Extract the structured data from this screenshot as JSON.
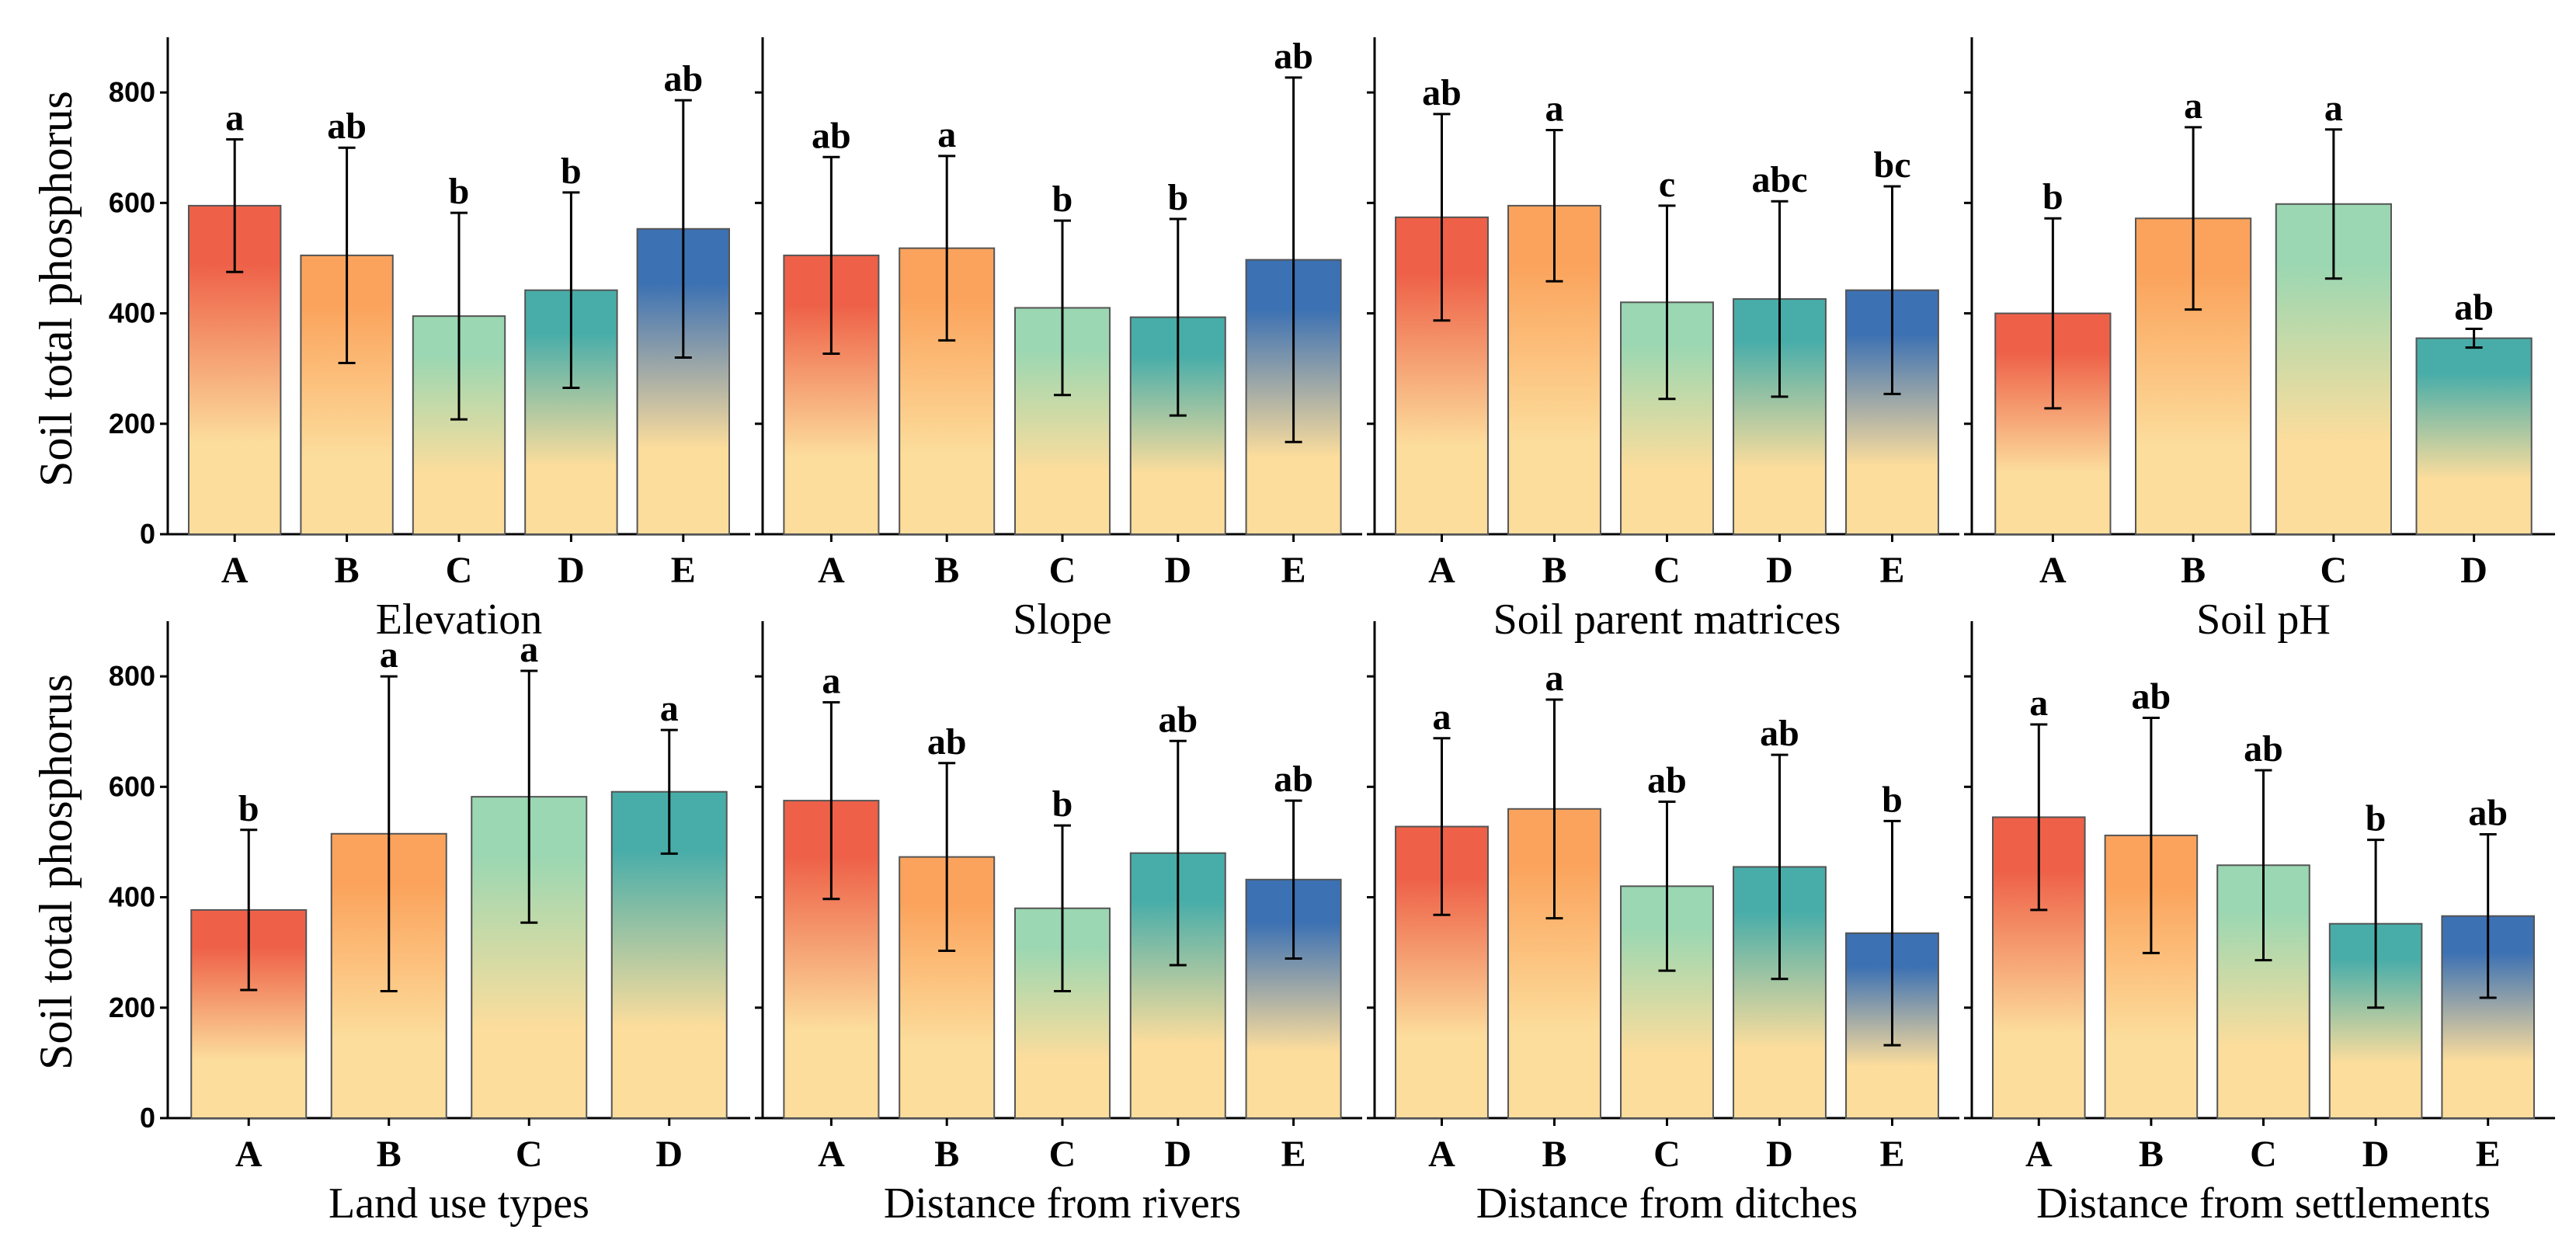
{
  "y_axis_title": "Soil total phosphorus",
  "colors": {
    "top_red": "#ee6148",
    "top_orange": "#fba35c",
    "top_green": "#9ad7b2",
    "top_teal": "#48ada9",
    "top_blue": "#3c71b3",
    "bottom": "#fcdd9c"
  },
  "chart_data": [
    {
      "type": "bar",
      "title": "",
      "xlabel": "Elevation",
      "ylabel": "Soil total phosphorus",
      "ylim": [
        0,
        900
      ],
      "yticks": [
        0,
        200,
        400,
        600,
        800
      ],
      "categories": [
        "A",
        "B",
        "C",
        "D",
        "E"
      ],
      "values": [
        595,
        505,
        395,
        442,
        553
      ],
      "errors": [
        120,
        195,
        187,
        177,
        233
      ],
      "letters": [
        "a",
        "ab",
        "b",
        "b",
        "ab"
      ],
      "bar_colors": [
        "#ee6148",
        "#fba35c",
        "#9ad7b2",
        "#48ada9",
        "#3c71b3"
      ]
    },
    {
      "type": "bar",
      "title": "",
      "xlabel": "Slope",
      "ylabel": "Soil total phosphorus",
      "ylim": [
        0,
        900
      ],
      "yticks": [
        0,
        200,
        400,
        600,
        800
      ],
      "categories": [
        "A",
        "B",
        "C",
        "D",
        "E"
      ],
      "values": [
        505,
        518,
        410,
        393,
        497
      ],
      "errors": [
        178,
        167,
        158,
        178,
        330
      ],
      "letters": [
        "ab",
        "a",
        "b",
        "b",
        "ab"
      ],
      "bar_colors": [
        "#ee6148",
        "#fba35c",
        "#9ad7b2",
        "#48ada9",
        "#3c71b3"
      ]
    },
    {
      "type": "bar",
      "title": "",
      "xlabel": "Soil parent matrices",
      "ylabel": "Soil total phosphorus",
      "ylim": [
        0,
        900
      ],
      "yticks": [
        0,
        200,
        400,
        600,
        800
      ],
      "categories": [
        "A",
        "B",
        "C",
        "D",
        "E"
      ],
      "values": [
        574,
        595,
        420,
        426,
        442
      ],
      "errors": [
        187,
        137,
        175,
        177,
        188
      ],
      "letters": [
        "ab",
        "a",
        "c",
        "abc",
        "bc"
      ],
      "bar_colors": [
        "#ee6148",
        "#fba35c",
        "#9ad7b2",
        "#48ada9",
        "#3c71b3"
      ]
    },
    {
      "type": "bar",
      "title": "",
      "xlabel": "Soil pH",
      "ylabel": "Soil total phosphorus",
      "ylim": [
        0,
        900
      ],
      "yticks": [
        0,
        200,
        400,
        600,
        800
      ],
      "categories": [
        "A",
        "B",
        "C",
        "D"
      ],
      "values": [
        400,
        572,
        598,
        355
      ],
      "errors": [
        172,
        165,
        135,
        17
      ],
      "letters": [
        "b",
        "a",
        "a",
        "ab"
      ],
      "bar_colors": [
        "#ee6148",
        "#fba35c",
        "#9ad7b2",
        "#48ada9"
      ]
    },
    {
      "type": "bar",
      "title": "",
      "xlabel": "Land use types",
      "ylabel": "Soil total phosphorus",
      "ylim": [
        0,
        900
      ],
      "yticks": [
        0,
        200,
        400,
        600,
        800
      ],
      "categories": [
        "A",
        "B",
        "C",
        "D"
      ],
      "values": [
        377,
        515,
        582,
        591
      ],
      "errors": [
        145,
        285,
        228,
        112
      ],
      "letters": [
        "b",
        "a",
        "a",
        "a"
      ],
      "bar_colors": [
        "#ee6148",
        "#fba35c",
        "#9ad7b2",
        "#48ada9"
      ]
    },
    {
      "type": "bar",
      "title": "",
      "xlabel": "Distance from rivers",
      "ylabel": "Soil total phosphorus",
      "ylim": [
        0,
        900
      ],
      "yticks": [
        0,
        200,
        400,
        600,
        800
      ],
      "categories": [
        "A",
        "B",
        "C",
        "D",
        "E"
      ],
      "values": [
        575,
        473,
        380,
        480,
        432
      ],
      "errors": [
        178,
        170,
        150,
        203,
        143
      ],
      "letters": [
        "a",
        "ab",
        "b",
        "ab",
        "ab"
      ],
      "bar_colors": [
        "#ee6148",
        "#fba35c",
        "#9ad7b2",
        "#48ada9",
        "#3c71b3"
      ]
    },
    {
      "type": "bar",
      "title": "",
      "xlabel": "Distance from ditches",
      "ylabel": "Soil total phosphorus",
      "ylim": [
        0,
        900
      ],
      "yticks": [
        0,
        200,
        400,
        600,
        800
      ],
      "categories": [
        "A",
        "B",
        "C",
        "D",
        "E"
      ],
      "values": [
        528,
        560,
        420,
        455,
        335
      ],
      "errors": [
        160,
        198,
        153,
        203,
        203
      ],
      "letters": [
        "a",
        "a",
        "ab",
        "ab",
        "b"
      ],
      "bar_colors": [
        "#ee6148",
        "#fba35c",
        "#9ad7b2",
        "#48ada9",
        "#3c71b3"
      ]
    },
    {
      "type": "bar",
      "title": "",
      "xlabel": "Distance from settlements",
      "ylabel": "Soil total phosphorus",
      "ylim": [
        0,
        900
      ],
      "yticks": [
        0,
        200,
        400,
        600,
        800
      ],
      "categories": [
        "A",
        "B",
        "C",
        "D",
        "E"
      ],
      "values": [
        545,
        512,
        458,
        352,
        366
      ],
      "errors": [
        168,
        213,
        172,
        152,
        148
      ],
      "letters": [
        "a",
        "ab",
        "ab",
        "b",
        "ab"
      ],
      "bar_colors": [
        "#ee6148",
        "#fba35c",
        "#9ad7b2",
        "#48ada9",
        "#3c71b3"
      ]
    }
  ]
}
